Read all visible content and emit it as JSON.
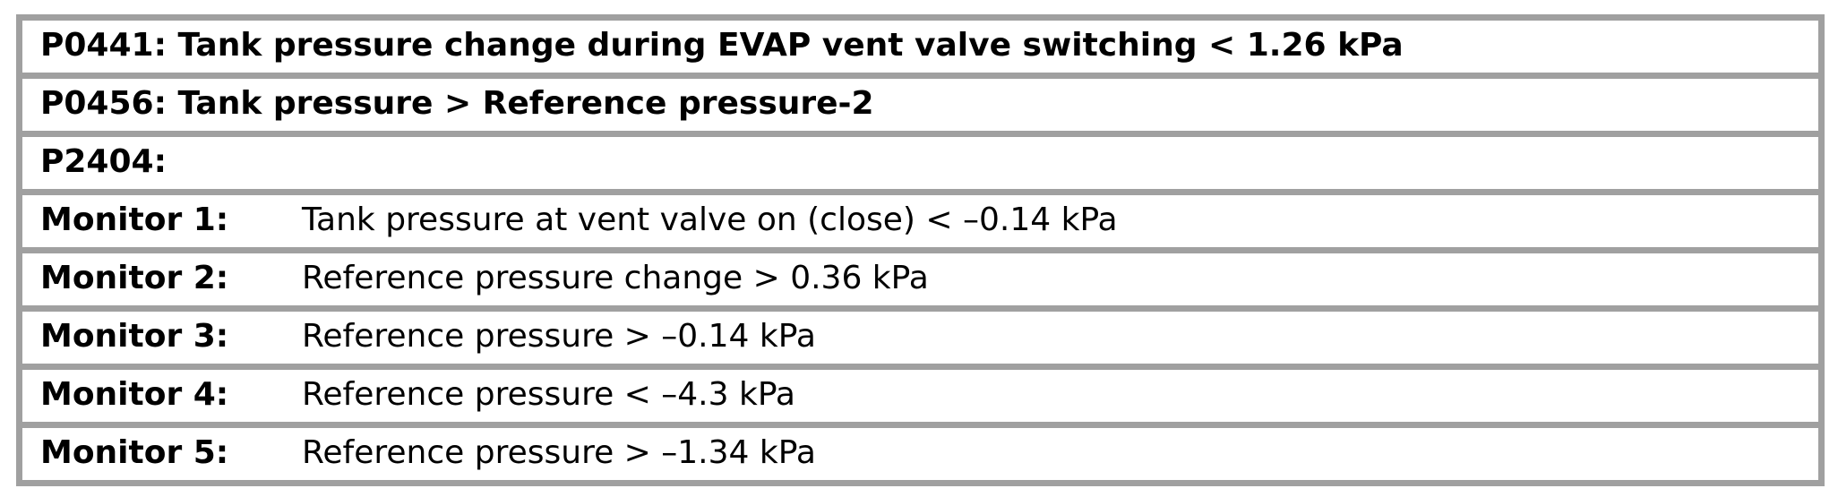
{
  "table": {
    "rows": [
      {
        "kind": "dtc-header",
        "text": "P0441: Tank pressure change during EVAP vent valve switching < 1.26 kPa"
      },
      {
        "kind": "dtc-header",
        "text": "P0456: Tank pressure > Reference pressure-2"
      },
      {
        "kind": "dtc-header",
        "text": "P2404:"
      },
      {
        "kind": "monitor",
        "label": "Monitor 1:",
        "text": "Tank pressure at vent valve on (close) < –0.14 kPa"
      },
      {
        "kind": "monitor",
        "label": "Monitor 2:",
        "text": "Reference pressure change > 0.36 kPa"
      },
      {
        "kind": "monitor",
        "label": "Monitor 3:",
        "text": "Reference pressure > –0.14 kPa"
      },
      {
        "kind": "monitor",
        "label": "Monitor 4:",
        "text": "Reference pressure < –4.3 kPa"
      },
      {
        "kind": "monitor",
        "label": "Monitor 5:",
        "text": "Reference pressure > –1.34 kPa"
      }
    ]
  },
  "colors": {
    "border": "#a0a0a0",
    "text": "#000000",
    "background": "#ffffff"
  }
}
